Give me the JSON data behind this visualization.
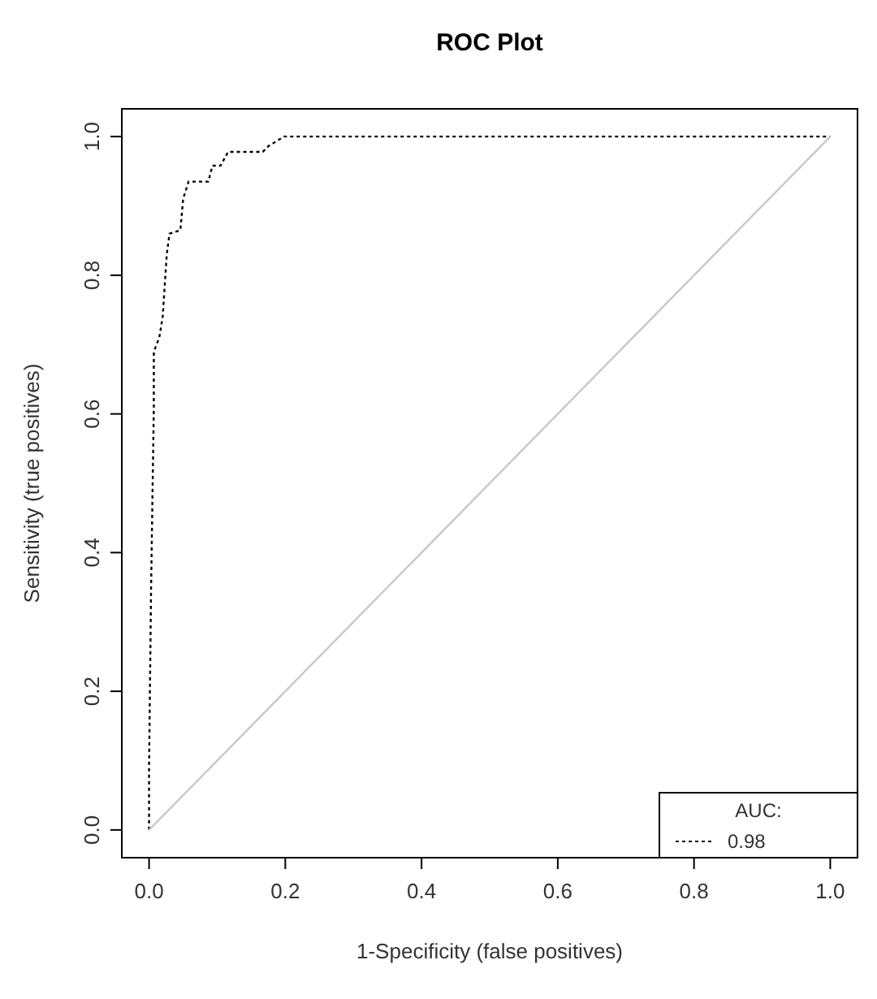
{
  "chart_data": {
    "type": "line",
    "title": "ROC Plot",
    "xlabel": "1-Specificity (false positives)",
    "ylabel": "Sensitivity (true positives)",
    "legend_title": "AUC:",
    "legend": "bottom right",
    "marker": "none",
    "xlim": [
      -0.04,
      1.04
    ],
    "ylim": [
      -0.04,
      1.04
    ],
    "xticks": [
      {
        "value": 0,
        "label": "0.0"
      },
      {
        "value": 0.2,
        "label": "0.2"
      },
      {
        "value": 0.4,
        "label": "0.4"
      },
      {
        "value": 0.6,
        "label": "0.6"
      },
      {
        "value": 0.8,
        "label": "0.8"
      },
      {
        "value": 1,
        "label": "1.0"
      }
    ],
    "yticks": [
      {
        "value": 0,
        "label": "0.0"
      },
      {
        "value": 0.2,
        "label": "0.2"
      },
      {
        "value": 0.4,
        "label": "0.4"
      },
      {
        "value": 0.6,
        "label": "0.6"
      },
      {
        "value": 0.8,
        "label": "0.8"
      },
      {
        "value": 1,
        "label": "1.0"
      }
    ],
    "grid": false,
    "series": [
      {
        "name": "0.98",
        "color": "#000000",
        "line_style": "dotted",
        "x": [
          0,
          0,
          0.003,
          0.007,
          0.007,
          0.015,
          0.02,
          0.026,
          0.03,
          0.046,
          0.05,
          0.058,
          0.087,
          0.093,
          0.105,
          0.116,
          0.167,
          0.175,
          0.198,
          1
        ],
        "values": [
          0,
          0.09,
          0.35,
          0.61,
          0.69,
          0.71,
          0.74,
          0.83,
          0.86,
          0.865,
          0.91,
          0.935,
          0.935,
          0.958,
          0.958,
          0.978,
          0.978,
          0.986,
          1,
          1
        ]
      },
      {
        "color": "#c8c8c8",
        "line_style": "solid",
        "x": [
          0,
          1
        ],
        "values": [
          0,
          1
        ]
      }
    ]
  }
}
